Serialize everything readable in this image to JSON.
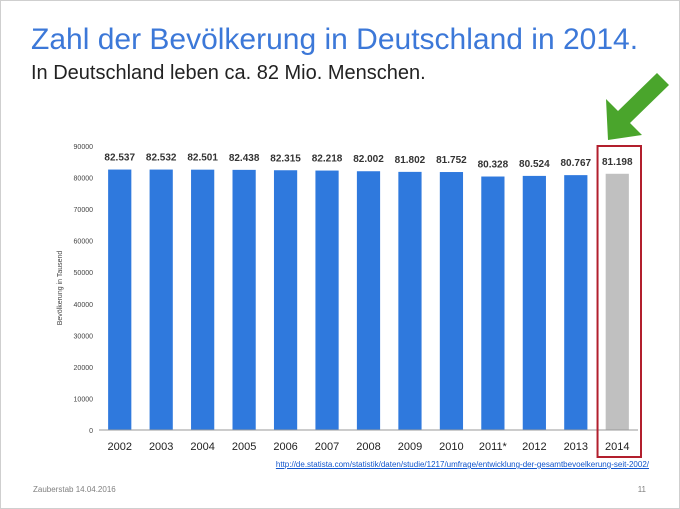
{
  "slide": {
    "title": "Zahl der Bevölkerung in Deutschland in 2014.",
    "subtitle": "In Deutschland leben ca. 82 Mio. Menschen.",
    "source_link": "http://de.statista.com/statistik/daten/studie/1217/umfrage/entwicklung-der-gesamtbevoelkerung-seit-2002/",
    "footer_left": "Zauberstab 14.04.2016",
    "page_number": "11"
  },
  "chart_data": {
    "type": "bar",
    "title": "",
    "xlabel": "",
    "ylabel": "Bevölkerung in Tausend",
    "ylim": [
      0,
      90000
    ],
    "yticks": [
      0,
      10000,
      20000,
      30000,
      40000,
      50000,
      60000,
      70000,
      80000,
      90000
    ],
    "grid": false,
    "categories": [
      "2002",
      "2003",
      "2004",
      "2005",
      "2006",
      "2007",
      "2008",
      "2009",
      "2010",
      "2011*",
      "2012",
      "2013",
      "2014"
    ],
    "values": [
      82537,
      82532,
      82501,
      82438,
      82315,
      82218,
      82002,
      81802,
      81752,
      80328,
      80524,
      80767,
      81198
    ],
    "value_labels": [
      "82.537",
      "82.532",
      "82.501",
      "82.438",
      "82.315",
      "82.218",
      "82.002",
      "81.802",
      "81.752",
      "80.328",
      "80.524",
      "80.767",
      "81.198"
    ],
    "highlight_index": 12,
    "colors": {
      "bar": "#2f79dd",
      "highlight_bar": "#c0c0c0",
      "highlight_box": "#b21f2d",
      "arrow": "#4aa52c"
    }
  }
}
